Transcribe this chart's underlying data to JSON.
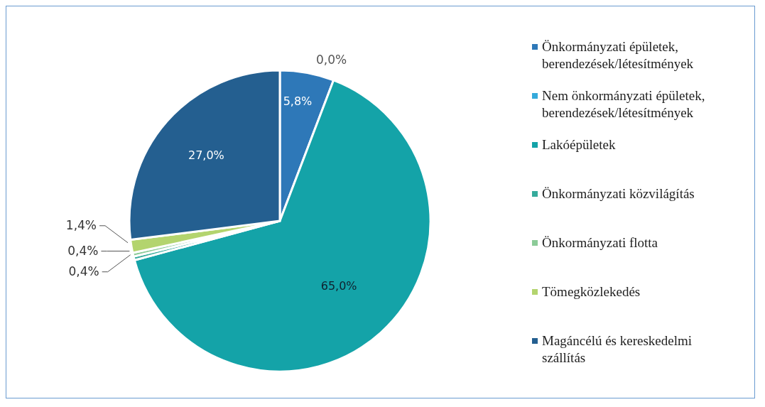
{
  "chart_data": {
    "type": "pie",
    "categories": [
      "Önkormányzati épületek, berendezések/létesítmények",
      "Nem önkormányzati épületek, berendezések/létesítmények",
      "Lakóépületek",
      "Önkormányzati közvilágítás",
      "Önkormányzati flotta",
      "Tömegközlekedés",
      "Magáncélú és kereskedelmi szállítás"
    ],
    "values": [
      5.8,
      0.0,
      65.0,
      0.4,
      0.4,
      1.4,
      27.0
    ],
    "colors": [
      "#2e78b8",
      "#35aadb",
      "#14a3a8",
      "#36ab9c",
      "#8ccb98",
      "#b3d46e",
      "#245f90"
    ],
    "value_labels": [
      "5,8%",
      "0,0%",
      "65,0%",
      "0,4%",
      "0,4%",
      "1,4%",
      "27,0%"
    ],
    "legend": "right"
  }
}
